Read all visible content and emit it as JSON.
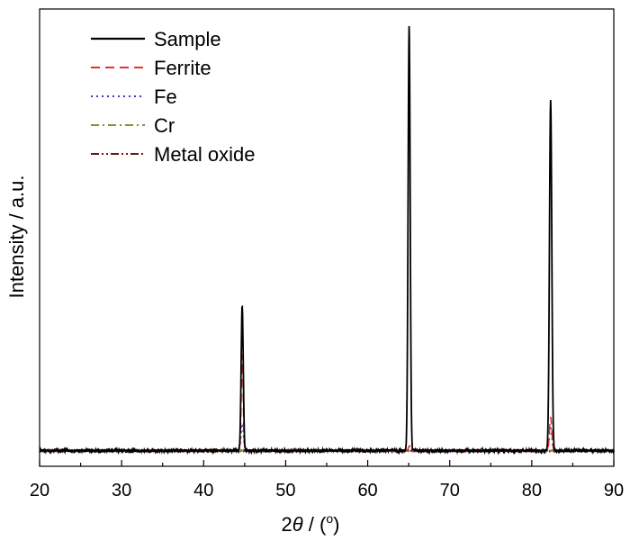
{
  "chart_data": {
    "type": "line",
    "title": "",
    "xlabel_prefix": "2",
    "xlabel_theta": "θ",
    "xlabel_suffix": " / (",
    "xlabel_degree": "o",
    "xlabel_close": ")",
    "ylabel": "Intensity / a.u.",
    "xlim": [
      20,
      90
    ],
    "ylim": [
      0,
      100
    ],
    "xticks": [
      20,
      30,
      40,
      50,
      60,
      70,
      80,
      90
    ],
    "grid": false,
    "legend_position": "top-left",
    "baseline": 3.5,
    "series": [
      {
        "name": "Sample",
        "color": "#000000",
        "dash": "solid",
        "peaks": [
          {
            "x": 44.7,
            "y": 36.0,
            "w": 0.18
          },
          {
            "x": 65.05,
            "y": 98.5,
            "w": 0.18
          },
          {
            "x": 82.3,
            "y": 82.0,
            "w": 0.2
          }
        ]
      },
      {
        "name": "Ferrite",
        "color": "#e8302b",
        "dash": "dashed",
        "peaks": [
          {
            "x": 44.7,
            "y": 25.0,
            "w": 0.16
          },
          {
            "x": 65.1,
            "y": 4.5,
            "w": 0.2
          },
          {
            "x": 82.3,
            "y": 11.0,
            "w": 0.2
          }
        ]
      },
      {
        "name": "Fe",
        "color": "#3a3fb5",
        "dash": "dotted",
        "peaks": [
          {
            "x": 44.7,
            "y": 9.5,
            "w": 0.2
          },
          {
            "x": 82.3,
            "y": 9.0,
            "w": 0.2
          }
        ]
      },
      {
        "name": "Cr",
        "color": "#8f8d3a",
        "dash": "dashdot",
        "peaks": [
          {
            "x": 44.7,
            "y": 3.5,
            "w": 0.25
          }
        ]
      },
      {
        "name": "Metal oxide",
        "color": "#6b1a14",
        "dash": "dashdotdot",
        "peaks": [
          {
            "x": 63.3,
            "y": 3.5,
            "w": 0.15
          }
        ]
      }
    ]
  }
}
